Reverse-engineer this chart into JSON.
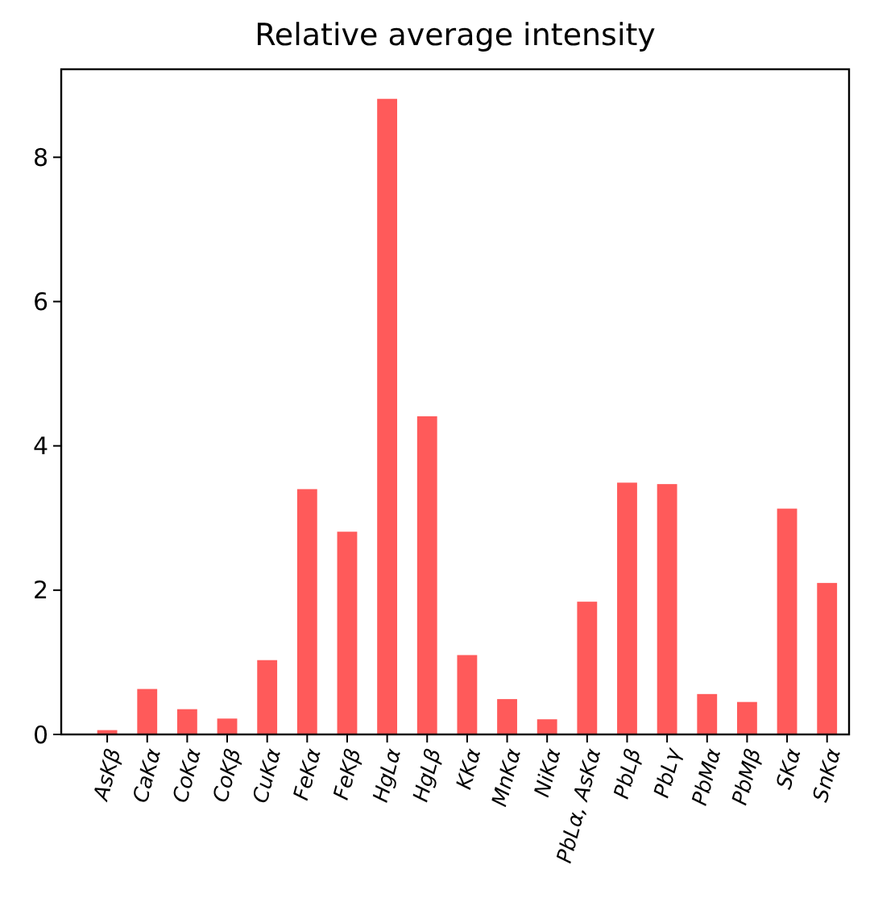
{
  "chart_data": {
    "type": "bar",
    "title": "Relative average intensity",
    "categories": [
      "AsKβ",
      "CaKα",
      "CoKα",
      "CoKβ",
      "CuKα",
      "FeKα",
      "FeKβ",
      "HgLα",
      "HgLβ",
      "KKα",
      "MnKα",
      "NiKα",
      "PbLα, AsKα",
      "PbLβ",
      "PbLγ",
      "PbMα",
      "PbMβ",
      "SKα",
      "SnKα"
    ],
    "values": [
      0.06,
      0.63,
      0.35,
      0.22,
      1.03,
      3.4,
      2.81,
      8.81,
      4.41,
      1.1,
      0.49,
      0.21,
      1.84,
      3.49,
      3.47,
      0.56,
      0.45,
      3.13,
      2.1
    ],
    "color": "#ff5a5a",
    "ylim": [
      0,
      9.22
    ],
    "yticks": [
      0,
      2,
      4,
      6,
      8
    ],
    "grid": false
  }
}
